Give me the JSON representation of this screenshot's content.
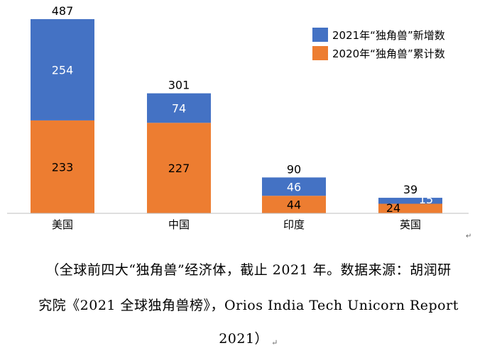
{
  "chart_data": {
    "type": "bar",
    "stacked": true,
    "categories": [
      "美国",
      "中国",
      "印度",
      "英国"
    ],
    "series": [
      {
        "name": "2020年“独角兽”累计数",
        "values": [
          233,
          227,
          44,
          24
        ],
        "color": "#ED7D31"
      },
      {
        "name": "2021年“独角兽”新增数",
        "values": [
          254,
          74,
          46,
          15
        ],
        "color": "#4472C4"
      }
    ],
    "totals": [
      487,
      301,
      90,
      39
    ],
    "ylim": [
      0,
      487
    ],
    "legend_position": "top-right",
    "grid": false
  },
  "legend": {
    "items": [
      {
        "label": "2021年“独角兽”新增数",
        "color": "#4472C4"
      },
      {
        "label": "2020年“独角兽”累计数",
        "color": "#ED7D31"
      }
    ]
  },
  "caption": {
    "line1": "（全球前四大“独角兽”经济体，截止 2021 年。数据来源：胡润研",
    "line2": "究院《2021 全球独角兽榜》，Orios India Tech Unicorn Report",
    "line3": "2021）",
    "mark": "↵"
  }
}
